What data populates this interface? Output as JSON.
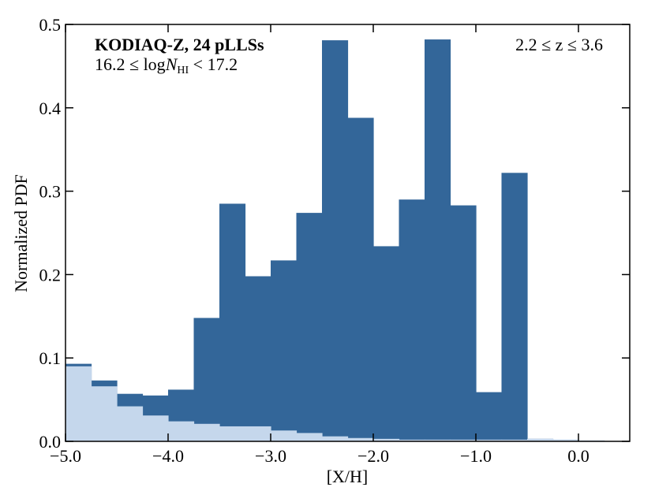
{
  "chart_data": {
    "type": "histogram",
    "xlabel": "[X/H]",
    "ylabel": "Normalized PDF",
    "annotation_sample": "KODIAQ-Z, 24 pLLSs",
    "annotation_column": {
      "pre": "16.2 ≤ log",
      "var": "N",
      "sub": "HI",
      "post": " < 17.2"
    },
    "annotation_redshift": "2.2 ≤ z ≤ 3.6",
    "bins": [
      -5.0,
      -4.75,
      -4.5,
      -4.25,
      -4.0,
      -3.75,
      -3.5,
      -3.25,
      -3.0,
      -2.75,
      -2.5,
      -2.25,
      -2.0,
      -1.75,
      -1.5,
      -1.25,
      -1.0,
      -0.75,
      -0.5,
      -0.25,
      0.0,
      0.25
    ],
    "series": [
      {
        "color": "#336699",
        "values": [
          0.093,
          0.073,
          0.057,
          0.055,
          0.062,
          0.148,
          0.285,
          0.198,
          0.217,
          0.274,
          0.481,
          0.388,
          0.234,
          0.29,
          0.482,
          0.283,
          0.059,
          0.322,
          0.003,
          0.002,
          0.001
        ]
      },
      {
        "color": "#c5d7ec",
        "values": [
          0.09,
          0.066,
          0.042,
          0.031,
          0.024,
          0.021,
          0.018,
          0.018,
          0.013,
          0.01,
          0.006,
          0.004,
          0.003,
          0.002,
          0.002,
          0.002,
          0.002,
          0.002,
          0.003,
          0.002,
          0.001
        ]
      }
    ],
    "xlim": [
      -5.0,
      0.5
    ],
    "ylim": [
      0,
      0.5
    ],
    "xticks": [
      {
        "value": -5,
        "label": "−5.0"
      },
      {
        "value": -4,
        "label": "−4.0"
      },
      {
        "value": -3,
        "label": "−3.0"
      },
      {
        "value": -2,
        "label": "−2.0"
      },
      {
        "value": -1,
        "label": "−1.0"
      },
      {
        "value": 0,
        "label": "0.0"
      }
    ],
    "yticks": [
      {
        "value": 0,
        "label": "0.0"
      },
      0.1,
      0.2,
      0.3,
      0.4,
      0.5
    ]
  }
}
